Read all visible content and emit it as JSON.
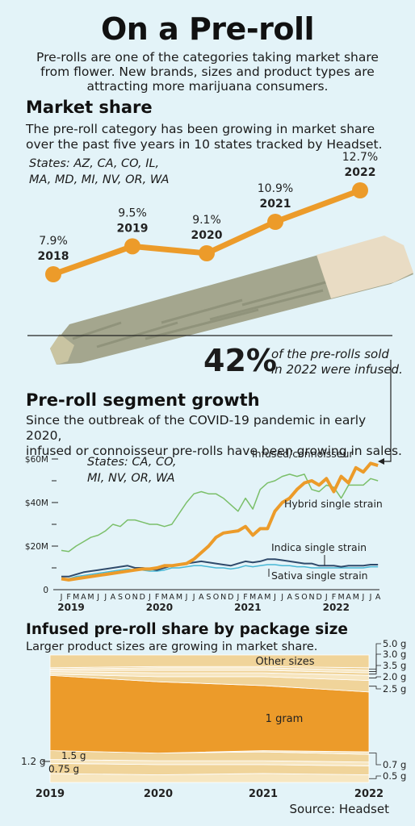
{
  "header": {
    "title": "On a Pre-roll",
    "intro_lines": [
      "Pre-rolls are one of the categories taking market share",
      "from flower. New brands, sizes and product types are",
      "attracting more marijuana consumers."
    ]
  },
  "market_share": {
    "heading": "Market share",
    "desc_lines": [
      "The pre-roll category has been growing in market share",
      "over the past five years in 10 states tracked by Headset."
    ],
    "states_lines": [
      "States: AZ, CA, CO, IL,",
      "MA, MD, MI, NV, OR, WA"
    ]
  },
  "callout": {
    "big": "42%",
    "lines": [
      "of the pre-rolls sold",
      "in 2022 were infused."
    ]
  },
  "segment": {
    "heading": "Pre-roll segment growth",
    "desc_lines": [
      "Since the outbreak of the COVID-19 pandemic in early 2020,",
      "infused or connoisseur pre-rolls have been growing in sales."
    ],
    "states_lines": [
      "States: CA, CO,",
      "MI, NV, OR, WA"
    ]
  },
  "package": {
    "heading": "Infused pre-roll share by package size",
    "desc": "Larger product sizes are growing in market share."
  },
  "source": "Source: Headset",
  "colors": {
    "orange": "#ec9b2a",
    "green": "#7bbf6a",
    "navy": "#2f4a6b",
    "cyan": "#48b8d6",
    "light": "#f0d49a",
    "pale": "#f7e6c0",
    "background": "#e3f3f8"
  },
  "chart_data": [
    {
      "type": "line",
      "title": "Market share",
      "x": [
        "2018",
        "2019",
        "2020",
        "2021",
        "2022"
      ],
      "series": [
        {
          "values": [
            7.9,
            9.5,
            9.1,
            10.9,
            12.7
          ]
        }
      ],
      "value_labels": [
        "7.9%",
        "9.5%",
        "9.1%",
        "10.9%",
        "12.7%"
      ]
    },
    {
      "type": "line",
      "title": "Pre-roll segment growth",
      "x_tick_labels": [
        "J",
        "F",
        "M",
        "A",
        "M",
        "J",
        "J",
        "A",
        "S",
        "O",
        "N",
        "D",
        "J",
        "F",
        "M",
        "A",
        "M",
        "J",
        "J",
        "A",
        "S",
        "O",
        "N",
        "D",
        "J",
        "F",
        "M",
        "A",
        "M",
        "J",
        "J",
        "A",
        "S",
        "O",
        "N",
        "D",
        "J",
        "F",
        "M",
        "A",
        "M",
        "J",
        "J",
        "A"
      ],
      "x_year_labels": [
        "2019",
        "2020",
        "2021",
        "2022"
      ],
      "y_tick_labels": [
        "0",
        "$20M",
        "$40M",
        "$60M"
      ],
      "ylim": [
        0,
        60
      ],
      "series": [
        {
          "name": "Infused/connoisseur",
          "values": [
            5,
            4.5,
            5,
            5.5,
            6,
            6.5,
            7,
            7.5,
            8,
            8.5,
            9,
            9.5,
            9.5,
            10,
            11,
            11,
            11.5,
            12,
            14,
            17,
            20,
            24,
            26,
            26.5,
            27,
            29,
            25,
            28,
            28,
            36,
            40,
            42,
            46,
            49,
            50,
            48,
            51,
            45,
            52,
            49,
            56,
            54,
            58,
            57
          ]
        },
        {
          "name": "Hybrid single strain",
          "values": [
            18,
            17.5,
            20,
            22,
            24,
            25,
            27,
            30,
            29,
            32,
            32,
            31,
            30,
            30,
            29,
            30,
            35,
            40,
            44,
            45,
            44,
            44,
            42,
            39,
            36,
            42,
            37,
            46,
            49,
            50,
            52,
            53,
            52,
            53,
            46,
            45,
            48,
            47,
            42,
            48,
            48,
            48,
            51,
            50
          ]
        },
        {
          "name": "Indica single strain",
          "values": [
            6,
            6,
            7,
            8,
            8.5,
            9,
            9.5,
            10,
            10.5,
            11,
            10,
            10,
            9.5,
            9,
            10,
            11,
            11.5,
            12,
            12.5,
            13,
            12.5,
            12,
            11.5,
            11,
            12,
            13,
            12.5,
            13,
            14,
            14,
            13.5,
            13,
            12.5,
            12,
            12,
            11,
            11,
            11,
            10.5,
            11,
            11,
            11,
            11.5,
            11.5
          ]
        },
        {
          "name": "Sativa single strain",
          "values": [
            5,
            5,
            6,
            6.5,
            7,
            7.5,
            8,
            8.5,
            9,
            9.5,
            9,
            9,
            8.5,
            8.5,
            9,
            10,
            10,
            10.5,
            11,
            11,
            10.5,
            10,
            10,
            9.5,
            10,
            11,
            10.5,
            11,
            11.5,
            11.5,
            11,
            11,
            10.5,
            10.5,
            10,
            10,
            10,
            10,
            10,
            10,
            10,
            10,
            10.5,
            10.5
          ]
        }
      ]
    },
    {
      "type": "area",
      "title": "Infused pre-roll share by package size",
      "x": [
        "2019",
        "2020",
        "2021",
        "2022"
      ],
      "series": [
        {
          "name": "0.5 g",
          "values": [
            7,
            6,
            7,
            6
          ]
        },
        {
          "name": "0.75 g",
          "values": [
            8,
            8,
            7,
            7
          ]
        },
        {
          "name": "1.2 g",
          "values": [
            3,
            3,
            3,
            3
          ]
        },
        {
          "name": "1.5 g",
          "values": [
            7,
            6,
            7,
            6
          ]
        },
        {
          "name": "0.7 g",
          "values": [
            0,
            0,
            1,
            2
          ]
        },
        {
          "name": "1 gram",
          "values": [
            59,
            56,
            51,
            47
          ]
        },
        {
          "name": "2.5 g",
          "values": [
            1,
            4,
            7,
            9
          ]
        },
        {
          "name": "2.0 g",
          "values": [
            2,
            3,
            3,
            4
          ]
        },
        {
          "name": "3.5 g",
          "values": [
            1,
            2,
            2,
            2
          ]
        },
        {
          "name": "3.0 g",
          "values": [
            1,
            2,
            2,
            2
          ]
        },
        {
          "name": "5.0 g",
          "values": [
            1,
            1,
            1,
            2
          ]
        },
        {
          "name": "Other sizes",
          "values": [
            10,
            9,
            9,
            10
          ]
        }
      ]
    }
  ]
}
